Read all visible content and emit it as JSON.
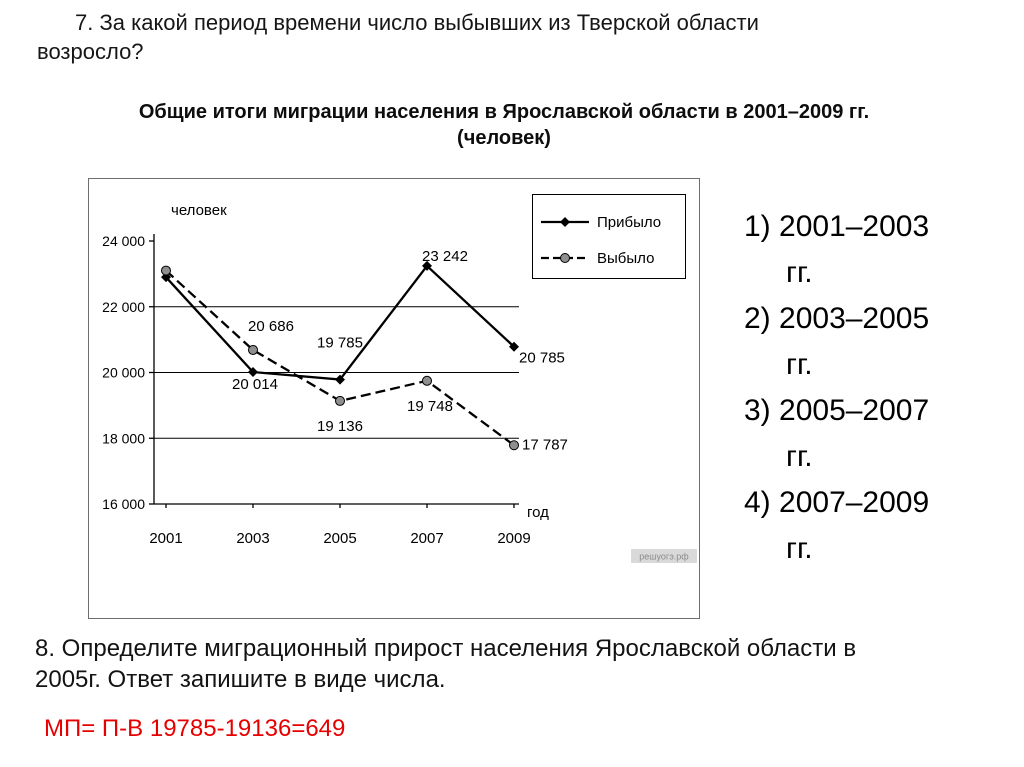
{
  "question7": {
    "lines": [
      "7. За какой период времени число выбывших из Тверской области",
      "возросло?"
    ]
  },
  "chart_title": {
    "lines": [
      "Общие итоги миграции населения в Ярославской области в 2001–2009 гг.",
      "(человек)"
    ]
  },
  "chart_data": {
    "type": "line",
    "title": "Общие итоги миграции населения в Ярославской области в 2001–2009 гг. (человек)",
    "categories": [
      "2001",
      "2003",
      "2005",
      "2007",
      "2009"
    ],
    "xlabel": "год",
    "ylabel": "человек",
    "ylim": [
      16000,
      24000
    ],
    "yticks": [
      16000,
      18000,
      20000,
      22000,
      24000
    ],
    "ytick_labels": [
      "16 000",
      "18 000",
      "20 000",
      "22 000",
      "24 000"
    ],
    "gridlines_at": [
      18000,
      20000,
      22000
    ],
    "legend": {
      "position": "top-right",
      "entries": [
        "Прибыло",
        "Выбыло"
      ]
    },
    "series": [
      {
        "name": "Прибыло",
        "line_style": "solid",
        "marker": "diamond",
        "values": [
          22900,
          20014,
          19785,
          23242,
          20785
        ],
        "point_labels": [
          "",
          "20 014",
          "19 785",
          "23 242",
          "20 785"
        ],
        "label_pos": [
          null,
          [
            2,
            17,
            "m"
          ],
          [
            0,
            -32,
            "m"
          ],
          [
            18,
            -5,
            "m"
          ],
          [
            5,
            16,
            "s"
          ]
        ]
      },
      {
        "name": "Выбыло",
        "line_style": "dashed",
        "marker": "circle",
        "values": [
          23100,
          20686,
          19136,
          19748,
          17787
        ],
        "point_labels": [
          "",
          "20 686",
          "19 136",
          "19 748",
          "17 787"
        ],
        "label_pos": [
          null,
          [
            18,
            -19,
            "m"
          ],
          [
            0,
            30,
            "m"
          ],
          [
            3,
            30,
            "m"
          ],
          [
            8,
            4,
            "s"
          ]
        ]
      }
    ],
    "watermark": "решуогэ.рф"
  },
  "answers": [
    {
      "label": "1) 2001–2003 гг."
    },
    {
      "label": "2) 2003–2005 гг."
    },
    {
      "label": "3) 2005–2007 гг."
    },
    {
      "label": "4) 2007–2009 гг."
    }
  ],
  "question8": {
    "lines": [
      "8. Определите миграционный прирост населения Ярославской области в",
      "2005г. Ответ запишите в виде числа."
    ]
  },
  "solution": {
    "text": "МП= П-В 19785-19136=649"
  },
  "colors": {
    "solution_red": "#e60000",
    "chart_line": "#000000",
    "marker_gray": "#8f8f8f",
    "watermark_bg": "#d9d9d9",
    "watermark_text": "#8a8a8a"
  }
}
